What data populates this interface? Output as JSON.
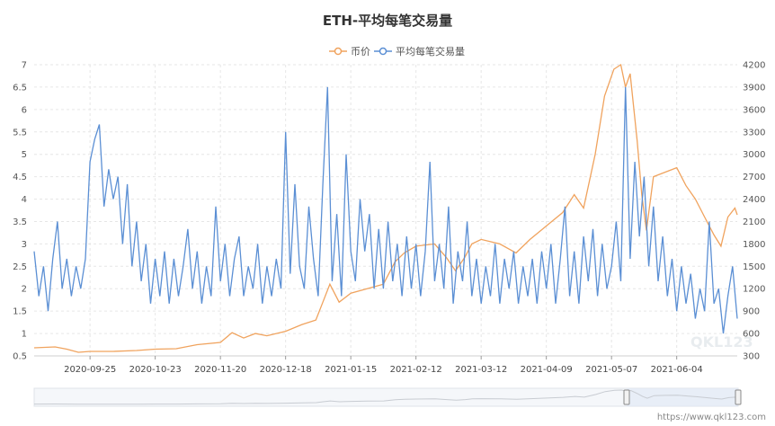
{
  "chart_data": {
    "type": "line",
    "title": "ETH-平均每笔交易量",
    "x_ticks": [
      "2020-09-25",
      "2020-10-23",
      "2020-11-20",
      "2020-12-18",
      "2021-01-15",
      "2021-02-12",
      "2021-03-12",
      "2021-04-09",
      "2021-05-07",
      "2021-06-04"
    ],
    "x_range": [
      "2020-09-01",
      "2021-06-30"
    ],
    "y_left": {
      "ticks": [
        "0.5",
        "1",
        "1.5",
        "2",
        "2.5",
        "3",
        "3.5",
        "4",
        "4.5",
        "5",
        "5.5",
        "6",
        "6.5",
        "7"
      ],
      "range": [
        0.5,
        7
      ]
    },
    "y_right": {
      "ticks": [
        "300",
        "600",
        "900",
        "1200",
        "1500",
        "1800",
        "2100",
        "2400",
        "2700",
        "3000",
        "3300",
        "3600",
        "3900",
        "4200"
      ],
      "range": [
        300,
        4200
      ]
    },
    "grid": true,
    "legend_position": "top-center",
    "series": [
      {
        "name": "币价",
        "axis": "left",
        "color": "#f0a35e",
        "points": [
          [
            "2020-09-01",
            0.68
          ],
          [
            "2020-09-10",
            0.7
          ],
          [
            "2020-09-15",
            0.65
          ],
          [
            "2020-09-20",
            0.58
          ],
          [
            "2020-09-25",
            0.6
          ],
          [
            "2020-10-05",
            0.6
          ],
          [
            "2020-10-15",
            0.62
          ],
          [
            "2020-10-23",
            0.65
          ],
          [
            "2020-11-01",
            0.66
          ],
          [
            "2020-11-10",
            0.75
          ],
          [
            "2020-11-20",
            0.8
          ],
          [
            "2020-11-25",
            1.02
          ],
          [
            "2020-11-30",
            0.9
          ],
          [
            "2020-12-05",
            1.0
          ],
          [
            "2020-12-10",
            0.95
          ],
          [
            "2020-12-18",
            1.05
          ],
          [
            "2020-12-25",
            1.2
          ],
          [
            "2020-12-31",
            1.3
          ],
          [
            "2021-01-03",
            1.7
          ],
          [
            "2021-01-06",
            2.1
          ],
          [
            "2021-01-10",
            1.7
          ],
          [
            "2021-01-15",
            1.9
          ],
          [
            "2021-01-22",
            2.0
          ],
          [
            "2021-01-29",
            2.1
          ],
          [
            "2021-02-03",
            2.6
          ],
          [
            "2021-02-07",
            2.8
          ],
          [
            "2021-02-12",
            2.95
          ],
          [
            "2021-02-20",
            3.0
          ],
          [
            "2021-02-25",
            2.7
          ],
          [
            "2021-03-01",
            2.4
          ],
          [
            "2021-03-05",
            2.7
          ],
          [
            "2021-03-08",
            3.0
          ],
          [
            "2021-03-12",
            3.1
          ],
          [
            "2021-03-20",
            3.0
          ],
          [
            "2021-03-27",
            2.8
          ],
          [
            "2021-04-02",
            3.1
          ],
          [
            "2021-04-09",
            3.4
          ],
          [
            "2021-04-16",
            3.7
          ],
          [
            "2021-04-21",
            4.1
          ],
          [
            "2021-04-25",
            3.8
          ],
          [
            "2021-04-30",
            5.0
          ],
          [
            "2021-05-04",
            6.3
          ],
          [
            "2021-05-08",
            6.9
          ],
          [
            "2021-05-11",
            7.0
          ],
          [
            "2021-05-13",
            6.5
          ],
          [
            "2021-05-15",
            6.8
          ],
          [
            "2021-05-18",
            5.3
          ],
          [
            "2021-05-20",
            4.1
          ],
          [
            "2021-05-22",
            3.3
          ],
          [
            "2021-05-25",
            4.5
          ],
          [
            "2021-05-30",
            4.6
          ],
          [
            "2021-06-04",
            4.7
          ],
          [
            "2021-06-08",
            4.3
          ],
          [
            "2021-06-12",
            4.0
          ],
          [
            "2021-06-16",
            3.6
          ],
          [
            "2021-06-20",
            3.2
          ],
          [
            "2021-06-23",
            2.95
          ],
          [
            "2021-06-26",
            3.6
          ],
          [
            "2021-06-29",
            3.8
          ],
          [
            "2021-06-30",
            3.65
          ]
        ]
      },
      {
        "name": "平均每笔交易量",
        "axis": "right",
        "color": "#5b8fd4",
        "points": [
          [
            "2020-09-01",
            1700
          ],
          [
            "2020-09-03",
            1100
          ],
          [
            "2020-09-05",
            1500
          ],
          [
            "2020-09-07",
            900
          ],
          [
            "2020-09-09",
            1600
          ],
          [
            "2020-09-11",
            2100
          ],
          [
            "2020-09-13",
            1200
          ],
          [
            "2020-09-15",
            1600
          ],
          [
            "2020-09-17",
            1100
          ],
          [
            "2020-09-19",
            1500
          ],
          [
            "2020-09-21",
            1200
          ],
          [
            "2020-09-23",
            1600
          ],
          [
            "2020-09-25",
            2900
          ],
          [
            "2020-09-27",
            3200
          ],
          [
            "2020-09-29",
            3400
          ],
          [
            "2020-10-01",
            2300
          ],
          [
            "2020-10-03",
            2800
          ],
          [
            "2020-10-05",
            2400
          ],
          [
            "2020-10-07",
            2700
          ],
          [
            "2020-10-09",
            1800
          ],
          [
            "2020-10-11",
            2600
          ],
          [
            "2020-10-13",
            1500
          ],
          [
            "2020-10-15",
            2100
          ],
          [
            "2020-10-17",
            1300
          ],
          [
            "2020-10-19",
            1800
          ],
          [
            "2020-10-21",
            1000
          ],
          [
            "2020-10-23",
            1600
          ],
          [
            "2020-10-25",
            1100
          ],
          [
            "2020-10-27",
            1700
          ],
          [
            "2020-10-29",
            1000
          ],
          [
            "2020-10-31",
            1600
          ],
          [
            "2020-11-02",
            1100
          ],
          [
            "2020-11-04",
            1500
          ],
          [
            "2020-11-06",
            2000
          ],
          [
            "2020-11-08",
            1200
          ],
          [
            "2020-11-10",
            1700
          ],
          [
            "2020-11-12",
            1000
          ],
          [
            "2020-11-14",
            1500
          ],
          [
            "2020-11-16",
            1100
          ],
          [
            "2020-11-18",
            2300
          ],
          [
            "2020-11-20",
            1300
          ],
          [
            "2020-11-22",
            1800
          ],
          [
            "2020-11-24",
            1100
          ],
          [
            "2020-11-26",
            1600
          ],
          [
            "2020-11-28",
            1900
          ],
          [
            "2020-11-30",
            1100
          ],
          [
            "2020-12-02",
            1500
          ],
          [
            "2020-12-04",
            1200
          ],
          [
            "2020-12-06",
            1800
          ],
          [
            "2020-12-08",
            1000
          ],
          [
            "2020-12-10",
            1500
          ],
          [
            "2020-12-12",
            1100
          ],
          [
            "2020-12-14",
            1600
          ],
          [
            "2020-12-16",
            1200
          ],
          [
            "2020-12-18",
            3300
          ],
          [
            "2020-12-20",
            1400
          ],
          [
            "2020-12-22",
            2600
          ],
          [
            "2020-12-24",
            1500
          ],
          [
            "2020-12-26",
            1200
          ],
          [
            "2020-12-28",
            2300
          ],
          [
            "2020-12-30",
            1600
          ],
          [
            "2021-01-01",
            1100
          ],
          [
            "2021-01-03",
            2600
          ],
          [
            "2021-01-05",
            3900
          ],
          [
            "2021-01-07",
            1300
          ],
          [
            "2021-01-09",
            2200
          ],
          [
            "2021-01-11",
            1100
          ],
          [
            "2021-01-13",
            3000
          ],
          [
            "2021-01-15",
            1700
          ],
          [
            "2021-01-17",
            1300
          ],
          [
            "2021-01-19",
            2400
          ],
          [
            "2021-01-21",
            1700
          ],
          [
            "2021-01-23",
            2200
          ],
          [
            "2021-01-25",
            1200
          ],
          [
            "2021-01-27",
            2000
          ],
          [
            "2021-01-29",
            1200
          ],
          [
            "2021-01-31",
            2100
          ],
          [
            "2021-02-02",
            1300
          ],
          [
            "2021-02-04",
            1800
          ],
          [
            "2021-02-06",
            1100
          ],
          [
            "2021-02-08",
            1900
          ],
          [
            "2021-02-10",
            1200
          ],
          [
            "2021-02-12",
            1800
          ],
          [
            "2021-02-14",
            1100
          ],
          [
            "2021-02-16",
            1700
          ],
          [
            "2021-02-18",
            2900
          ],
          [
            "2021-02-20",
            1300
          ],
          [
            "2021-02-22",
            1800
          ],
          [
            "2021-02-24",
            1200
          ],
          [
            "2021-02-26",
            2300
          ],
          [
            "2021-02-28",
            1000
          ],
          [
            "2021-03-02",
            1700
          ],
          [
            "2021-03-04",
            1300
          ],
          [
            "2021-03-06",
            2100
          ],
          [
            "2021-03-08",
            1100
          ],
          [
            "2021-03-10",
            1600
          ],
          [
            "2021-03-12",
            1000
          ],
          [
            "2021-03-14",
            1500
          ],
          [
            "2021-03-16",
            1100
          ],
          [
            "2021-03-18",
            1800
          ],
          [
            "2021-03-20",
            1000
          ],
          [
            "2021-03-22",
            1600
          ],
          [
            "2021-03-24",
            1200
          ],
          [
            "2021-03-26",
            1700
          ],
          [
            "2021-03-28",
            1000
          ],
          [
            "2021-03-30",
            1500
          ],
          [
            "2021-04-01",
            1100
          ],
          [
            "2021-04-03",
            1600
          ],
          [
            "2021-04-05",
            1000
          ],
          [
            "2021-04-07",
            1700
          ],
          [
            "2021-04-09",
            1200
          ],
          [
            "2021-04-11",
            1800
          ],
          [
            "2021-04-13",
            1000
          ],
          [
            "2021-04-15",
            1600
          ],
          [
            "2021-04-17",
            2300
          ],
          [
            "2021-04-19",
            1100
          ],
          [
            "2021-04-21",
            1700
          ],
          [
            "2021-04-23",
            1000
          ],
          [
            "2021-04-25",
            1900
          ],
          [
            "2021-04-27",
            1300
          ],
          [
            "2021-04-29",
            2000
          ],
          [
            "2021-05-01",
            1100
          ],
          [
            "2021-05-03",
            1800
          ],
          [
            "2021-05-05",
            1200
          ],
          [
            "2021-05-07",
            1500
          ],
          [
            "2021-05-09",
            2100
          ],
          [
            "2021-05-11",
            1300
          ],
          [
            "2021-05-13",
            3900
          ],
          [
            "2021-05-15",
            1600
          ],
          [
            "2021-05-17",
            2900
          ],
          [
            "2021-05-19",
            1900
          ],
          [
            "2021-05-21",
            2700
          ],
          [
            "2021-05-23",
            1500
          ],
          [
            "2021-05-25",
            2300
          ],
          [
            "2021-05-27",
            1300
          ],
          [
            "2021-05-29",
            1900
          ],
          [
            "2021-05-31",
            1100
          ],
          [
            "2021-06-02",
            1600
          ],
          [
            "2021-06-04",
            900
          ],
          [
            "2021-06-06",
            1500
          ],
          [
            "2021-06-08",
            1000
          ],
          [
            "2021-06-10",
            1400
          ],
          [
            "2021-06-12",
            800
          ],
          [
            "2021-06-14",
            1200
          ],
          [
            "2021-06-16",
            900
          ],
          [
            "2021-06-18",
            2100
          ],
          [
            "2021-06-20",
            1000
          ],
          [
            "2021-06-22",
            1200
          ],
          [
            "2021-06-24",
            600
          ],
          [
            "2021-06-26",
            1100
          ],
          [
            "2021-06-28",
            1500
          ],
          [
            "2021-06-30",
            800
          ]
        ]
      }
    ]
  },
  "watermark": "QKL123",
  "footer": "https://www.qkl123.com"
}
